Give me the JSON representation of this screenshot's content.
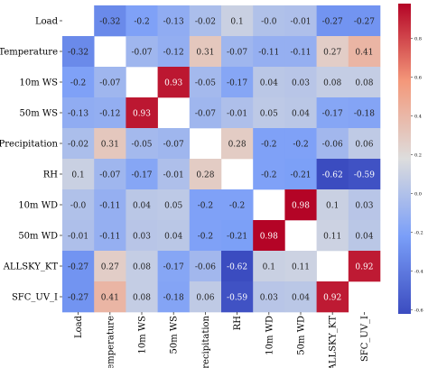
{
  "chart_data": {
    "type": "heatmap",
    "title": "",
    "xlabel": "",
    "ylabel": "",
    "labels": [
      "Load",
      "Temperature",
      "10m WS",
      "50m WS",
      "Precipitation",
      "RH",
      "10m WD",
      "50m WD",
      "ALLSKY_KT",
      "SFC_UV_I"
    ],
    "matrix": [
      [
        null,
        "-0.32",
        "-0.2",
        "-0.13",
        "-0.02",
        "0.1",
        "-0.0",
        "-0.01",
        "-0.27",
        "-0.27"
      ],
      [
        "-0.32",
        null,
        "-0.07",
        "-0.12",
        "0.31",
        "-0.07",
        "-0.11",
        "-0.11",
        "0.27",
        "0.41"
      ],
      [
        "-0.2",
        "-0.07",
        null,
        "0.93",
        "-0.05",
        "-0.17",
        "0.04",
        "0.03",
        "0.08",
        "0.08"
      ],
      [
        "-0.13",
        "-0.12",
        "0.93",
        null,
        "-0.07",
        "-0.01",
        "0.05",
        "0.04",
        "-0.17",
        "-0.18"
      ],
      [
        "-0.02",
        "0.31",
        "-0.05",
        "-0.07",
        null,
        "0.28",
        "-0.2",
        "-0.2",
        "-0.06",
        "0.06"
      ],
      [
        "0.1",
        "-0.07",
        "-0.17",
        "-0.01",
        "0.28",
        null,
        "-0.2",
        "-0.21",
        "-0.62",
        "-0.59"
      ],
      [
        "-0.0",
        "-0.11",
        "0.04",
        "0.05",
        "-0.2",
        "-0.2",
        null,
        "0.98",
        "0.1",
        "0.03"
      ],
      [
        "-0.01",
        "-0.11",
        "0.03",
        "0.04",
        "-0.2",
        "-0.21",
        "0.98",
        null,
        "0.11",
        "0.04"
      ],
      [
        "-0.27",
        "0.27",
        "0.08",
        "-0.17",
        "-0.06",
        "-0.62",
        "0.1",
        "0.11",
        null,
        "0.92"
      ],
      [
        "-0.27",
        "0.41",
        "0.08",
        "-0.18",
        "0.06",
        "-0.59",
        "0.03",
        "0.04",
        "0.92",
        null
      ]
    ],
    "colorbar": {
      "ticks": [
        "0.8",
        "0.6",
        "0.4",
        "0.2",
        "0.0",
        "-0.2",
        "-0.4",
        "-0.6"
      ],
      "range": [
        -0.62,
        0.98
      ],
      "colormap": "coolwarm",
      "low_color": "#3b4cc0",
      "mid_color": "#dddddd",
      "high_color": "#b40426"
    },
    "diagonal_blank": true
  }
}
